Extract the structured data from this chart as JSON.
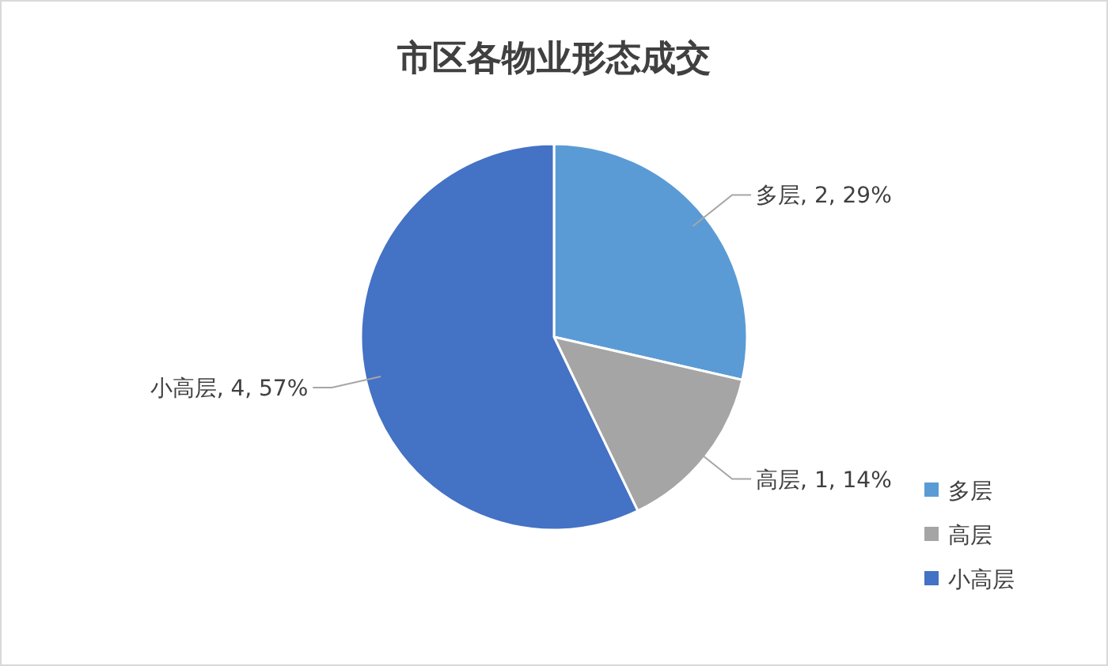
{
  "chart_data": {
    "type": "pie",
    "title": "市区各物业形态成交",
    "categories": [
      "多层",
      "高层",
      "小高层"
    ],
    "values": [
      2,
      1,
      4
    ],
    "colors": [
      "#5b9bd5",
      "#a5a5a5",
      "#4472c4"
    ],
    "value_labels": [
      "多层, 2, 29%",
      "高层, 1, 14%",
      "小高层, 4, 57%"
    ],
    "legend": "right"
  }
}
